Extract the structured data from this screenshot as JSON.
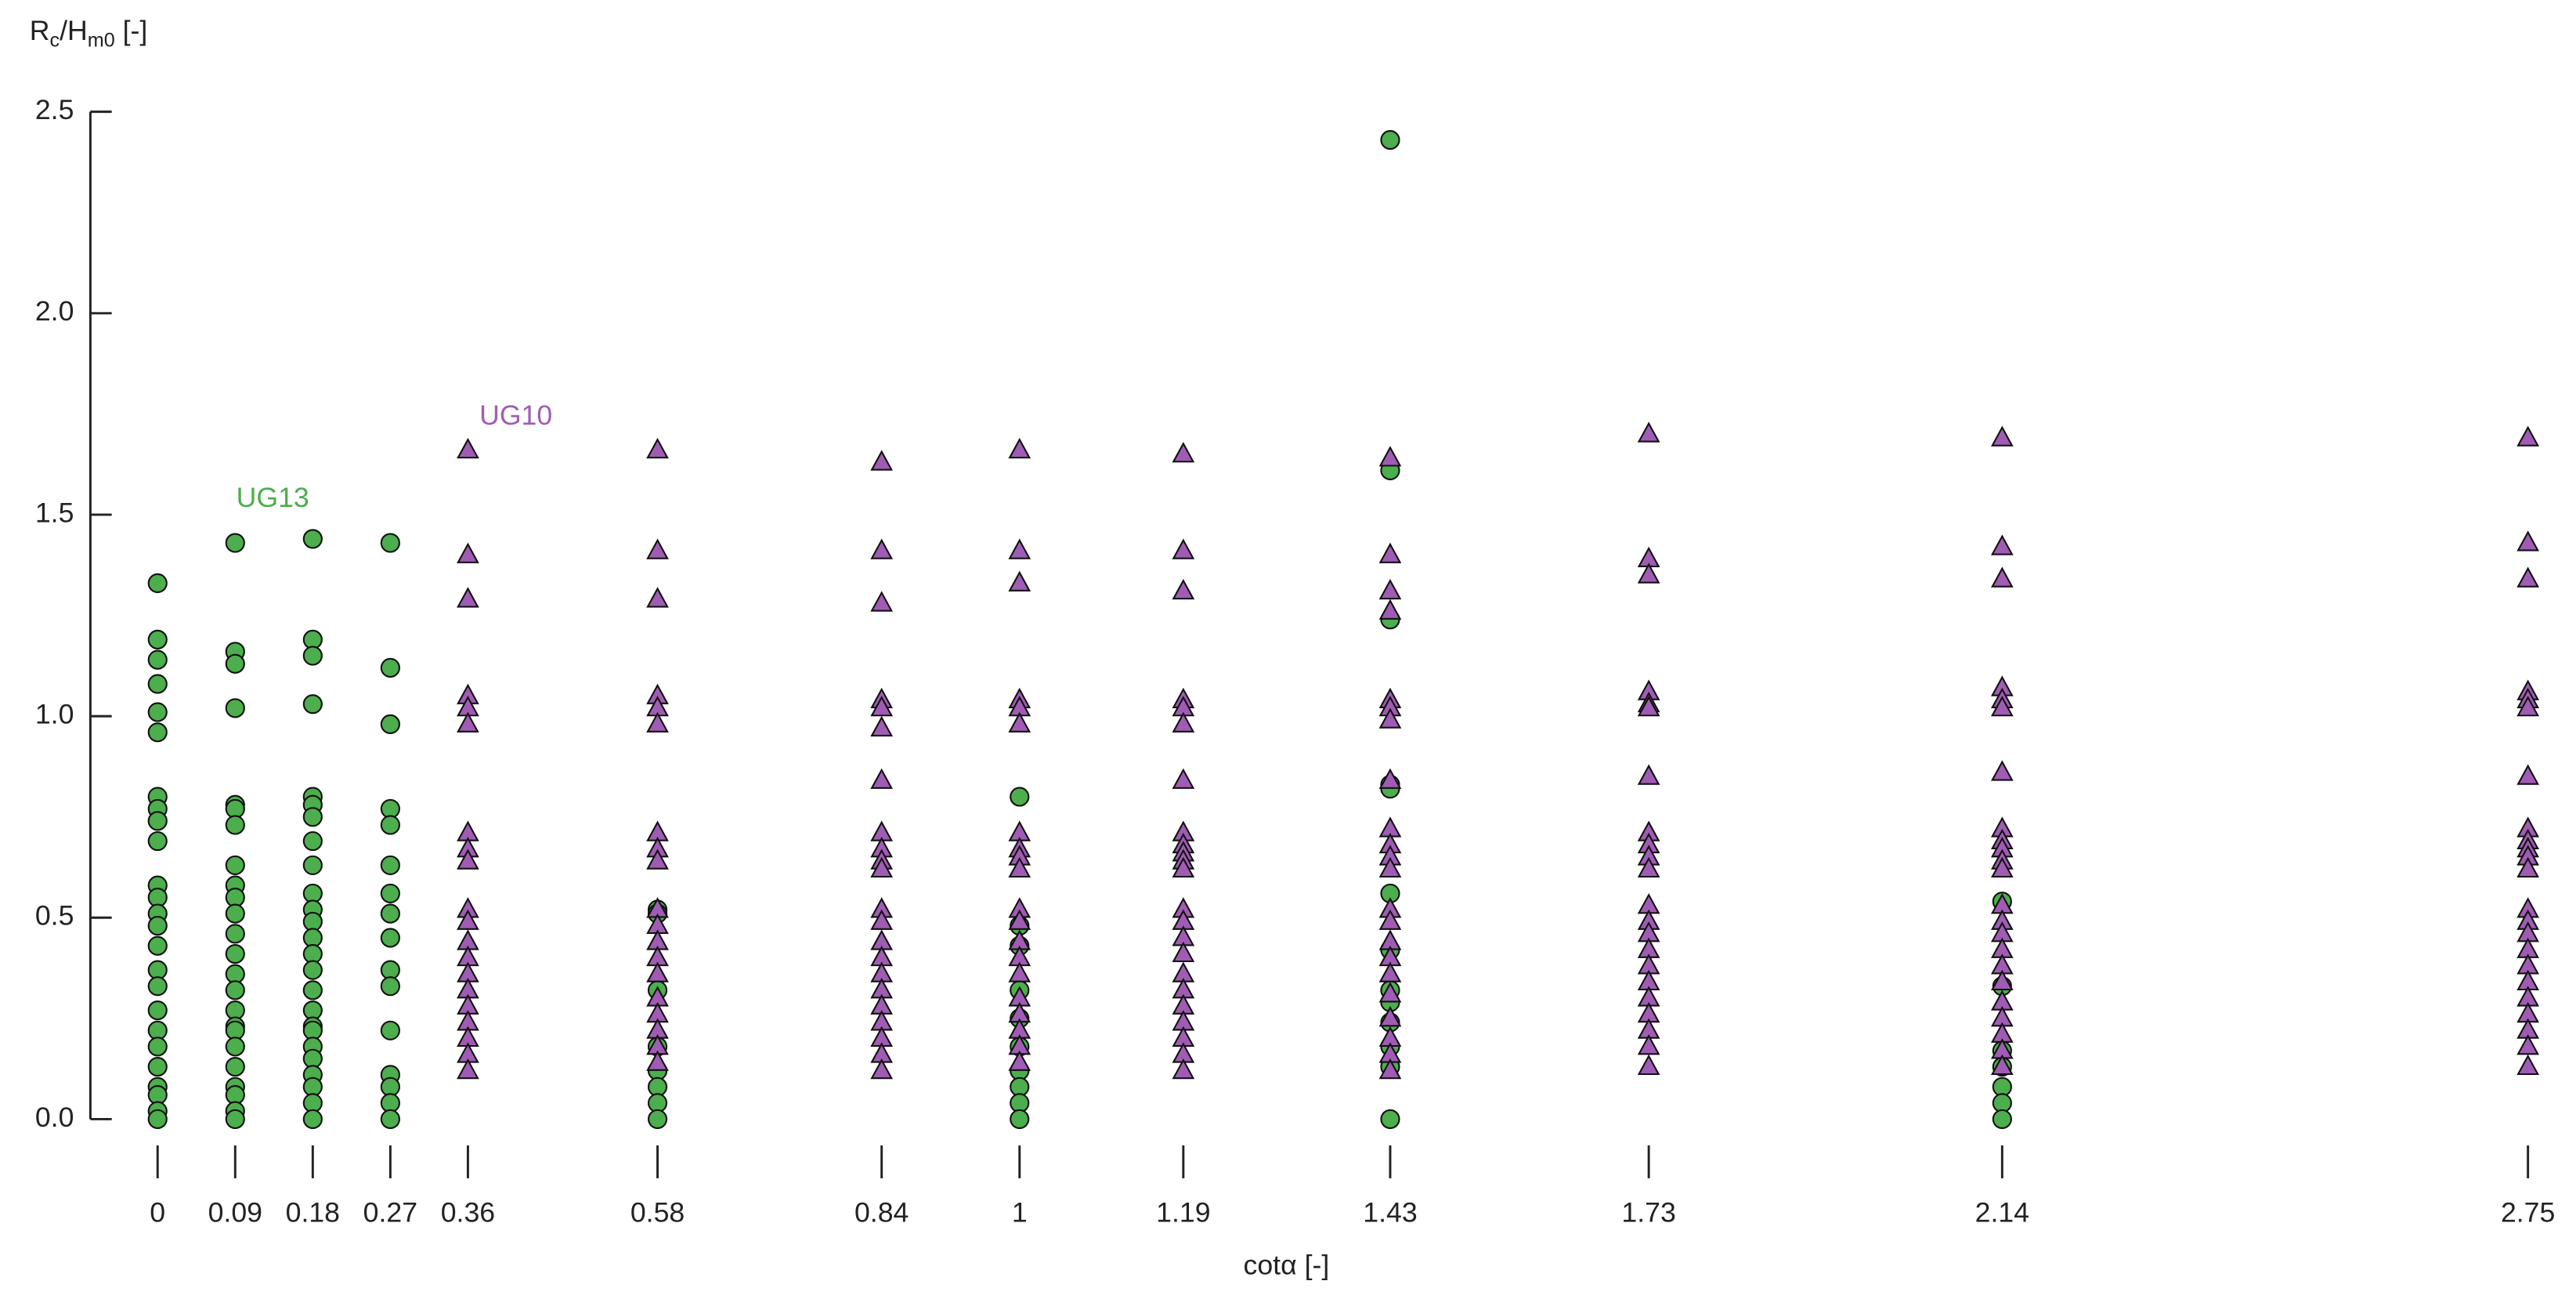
{
  "chart_data": {
    "type": "scatter",
    "ylabel": [
      {
        "text": "R"
      },
      {
        "text": "c",
        "sub": true
      },
      {
        "text": "/H"
      },
      {
        "text": "m0",
        "sub": true
      },
      {
        "text": " [-]"
      }
    ],
    "xlabel": "cotα [-]",
    "xlim": [
      -0.078,
      2.8
    ],
    "ylim": [
      0,
      2.5
    ],
    "xticks": [
      0,
      0.09,
      0.18,
      0.27,
      0.36,
      0.58,
      0.84,
      1,
      1.19,
      1.43,
      1.73,
      2.14,
      2.75
    ],
    "yticks": [
      {
        "value": 0,
        "label": "0.0"
      },
      0.5,
      {
        "value": 1,
        "label": "1.0"
      },
      1.5,
      {
        "value": 2,
        "label": "2.0"
      },
      2.5
    ],
    "series": [
      {
        "name": "UG13",
        "color": "#4cae4c",
        "marker": "circle",
        "x": [
          0,
          0,
          0,
          0,
          0,
          0,
          0,
          0,
          0,
          0,
          0,
          0,
          0,
          0,
          0,
          0,
          0,
          0,
          0,
          0,
          0,
          0,
          0,
          0,
          0,
          0.09,
          0.09,
          0.09,
          0.09,
          0.09,
          0.09,
          0.09,
          0.09,
          0.09,
          0.09,
          0.09,
          0.09,
          0.09,
          0.09,
          0.09,
          0.09,
          0.09,
          0.09,
          0.09,
          0.09,
          0.09,
          0.09,
          0.09,
          0.09,
          0.18,
          0.18,
          0.18,
          0.18,
          0.18,
          0.18,
          0.18,
          0.18,
          0.18,
          0.18,
          0.18,
          0.18,
          0.18,
          0.18,
          0.18,
          0.18,
          0.18,
          0.18,
          0.18,
          0.18,
          0.18,
          0.18,
          0.18,
          0.18,
          0.18,
          0.27,
          0.27,
          0.27,
          0.27,
          0.27,
          0.27,
          0.27,
          0.27,
          0.27,
          0.27,
          0.27,
          0.27,
          0.27,
          0.27,
          0.27,
          0.27,
          0.58,
          0.58,
          0.58,
          0.58,
          0.58,
          0.58,
          0.58,
          0.58,
          1,
          1,
          1,
          1,
          1,
          1,
          1,
          1,
          1,
          1,
          1.43,
          1.43,
          1.43,
          1.43,
          1.43,
          1.43,
          1.43,
          1.43,
          1.43,
          1.43,
          1.43,
          1.43,
          1.43,
          2.14,
          2.14,
          2.14,
          2.14,
          2.14,
          2.14,
          2.14
        ],
        "values": [
          1.33,
          1.19,
          1.14,
          1.08,
          1.01,
          0.96,
          0.8,
          0.77,
          0.74,
          0.69,
          0.58,
          0.55,
          0.51,
          0.48,
          0.43,
          0.37,
          0.33,
          0.27,
          0.22,
          0.18,
          0.13,
          0.08,
          0.06,
          0.02,
          0,
          1.43,
          1.16,
          1.13,
          1.02,
          0.78,
          0.77,
          0.73,
          0.63,
          0.58,
          0.55,
          0.51,
          0.46,
          0.41,
          0.36,
          0.32,
          0.27,
          0.23,
          0.22,
          0.18,
          0.13,
          0.08,
          0.06,
          0.02,
          0,
          1.44,
          1.19,
          1.15,
          1.03,
          0.8,
          0.78,
          0.75,
          0.69,
          0.63,
          0.56,
          0.52,
          0.49,
          0.45,
          0.41,
          0.37,
          0.32,
          0.27,
          0.23,
          0.22,
          0.18,
          0.15,
          0.11,
          0.08,
          0.04,
          0,
          1.43,
          1.12,
          0.98,
          0.77,
          0.73,
          0.63,
          0.56,
          0.51,
          0.45,
          0.37,
          0.33,
          0.22,
          0.11,
          0.08,
          0.04,
          0,
          0.52,
          0.51,
          0.32,
          0.18,
          0.12,
          0.08,
          0.04,
          0,
          0.8,
          0.48,
          0.43,
          0.32,
          0.25,
          0.18,
          0.12,
          0.08,
          0.04,
          0,
          2.43,
          1.61,
          1.24,
          0.83,
          0.82,
          0.56,
          0.42,
          0.32,
          0.29,
          0.24,
          0.18,
          0.13,
          0,
          0.54,
          0.33,
          0.17,
          0.13,
          0.08,
          0.04,
          0
        ]
      },
      {
        "name": "UG10",
        "color": "#a05cb4",
        "marker": "triangle",
        "x": [
          0.36,
          0.36,
          0.36,
          0.36,
          0.36,
          0.36,
          0.36,
          0.36,
          0.36,
          0.36,
          0.36,
          0.36,
          0.36,
          0.36,
          0.36,
          0.36,
          0.36,
          0.36,
          0.36,
          0.36,
          0.58,
          0.58,
          0.58,
          0.58,
          0.58,
          0.58,
          0.58,
          0.58,
          0.58,
          0.58,
          0.58,
          0.58,
          0.58,
          0.58,
          0.58,
          0.58,
          0.58,
          0.58,
          0.58,
          0.84,
          0.84,
          0.84,
          0.84,
          0.84,
          0.84,
          0.84,
          0.84,
          0.84,
          0.84,
          0.84,
          0.84,
          0.84,
          0.84,
          0.84,
          0.84,
          0.84,
          0.84,
          0.84,
          0.84,
          0.84,
          0.84,
          1,
          1,
          1,
          1,
          1,
          1,
          1,
          1,
          1,
          1,
          1,
          1,
          1,
          1,
          1,
          1,
          1,
          1,
          1,
          1,
          1.19,
          1.19,
          1.19,
          1.19,
          1.19,
          1.19,
          1.19,
          1.19,
          1.19,
          1.19,
          1.19,
          1.19,
          1.19,
          1.19,
          1.19,
          1.19,
          1.19,
          1.19,
          1.19,
          1.19,
          1.19,
          1.19,
          1.19,
          1.43,
          1.43,
          1.43,
          1.43,
          1.43,
          1.43,
          1.43,
          1.43,
          1.43,
          1.43,
          1.43,
          1.43,
          1.43,
          1.43,
          1.43,
          1.43,
          1.43,
          1.43,
          1.43,
          1.43,
          1.43,
          1.43,
          1.73,
          1.73,
          1.73,
          1.73,
          1.73,
          1.73,
          1.73,
          1.73,
          1.73,
          1.73,
          1.73,
          1.73,
          1.73,
          1.73,
          1.73,
          1.73,
          1.73,
          1.73,
          1.73,
          1.73,
          1.73,
          1.73,
          2.14,
          2.14,
          2.14,
          2.14,
          2.14,
          2.14,
          2.14,
          2.14,
          2.14,
          2.14,
          2.14,
          2.14,
          2.14,
          2.14,
          2.14,
          2.14,
          2.14,
          2.14,
          2.14,
          2.14,
          2.14,
          2.14,
          2.14,
          2.75,
          2.75,
          2.75,
          2.75,
          2.75,
          2.75,
          2.75,
          2.75,
          2.75,
          2.75,
          2.75,
          2.75,
          2.75,
          2.75,
          2.75,
          2.75,
          2.75,
          2.75,
          2.75,
          2.75,
          2.75,
          2.75,
          2.75
        ],
        "values": [
          1.66,
          1.4,
          1.29,
          1.05,
          1.02,
          0.98,
          0.71,
          0.67,
          0.64,
          0.52,
          0.49,
          0.44,
          0.4,
          0.36,
          0.32,
          0.28,
          0.24,
          0.2,
          0.16,
          0.12,
          1.66,
          1.41,
          1.29,
          1.05,
          1.02,
          0.98,
          0.71,
          0.67,
          0.64,
          0.52,
          0.48,
          0.44,
          0.4,
          0.36,
          0.3,
          0.26,
          0.22,
          0.18,
          0.14,
          1.63,
          1.41,
          1.28,
          1.04,
          1.02,
          0.97,
          0.84,
          0.71,
          0.67,
          0.64,
          0.62,
          0.52,
          0.49,
          0.44,
          0.4,
          0.36,
          0.32,
          0.28,
          0.24,
          0.2,
          0.16,
          0.12,
          1.66,
          1.41,
          1.33,
          1.04,
          1.02,
          0.98,
          0.71,
          0.67,
          0.65,
          0.62,
          0.52,
          0.49,
          0.44,
          0.4,
          0.36,
          0.3,
          0.26,
          0.22,
          0.18,
          0.14,
          1.65,
          1.41,
          1.31,
          1.04,
          1.02,
          0.98,
          0.84,
          0.71,
          0.68,
          0.66,
          0.64,
          0.62,
          0.52,
          0.49,
          0.45,
          0.41,
          0.36,
          0.32,
          0.28,
          0.24,
          0.2,
          0.16,
          0.12,
          1.64,
          1.4,
          1.31,
          1.26,
          1.04,
          1.02,
          0.99,
          0.84,
          0.72,
          0.68,
          0.65,
          0.62,
          0.52,
          0.49,
          0.44,
          0.4,
          0.36,
          0.31,
          0.25,
          0.2,
          0.16,
          0.12,
          1.7,
          1.39,
          1.35,
          1.06,
          1.03,
          1.02,
          0.85,
          0.71,
          0.68,
          0.65,
          0.62,
          0.53,
          0.49,
          0.46,
          0.42,
          0.38,
          0.34,
          0.3,
          0.26,
          0.22,
          0.18,
          0.13,
          1.69,
          1.42,
          1.34,
          1.07,
          1.04,
          1.02,
          0.86,
          0.72,
          0.69,
          0.67,
          0.64,
          0.62,
          0.53,
          0.49,
          0.46,
          0.42,
          0.38,
          0.34,
          0.29,
          0.25,
          0.21,
          0.17,
          0.13,
          1.69,
          1.43,
          1.34,
          1.06,
          1.04,
          1.02,
          0.85,
          0.72,
          0.69,
          0.67,
          0.65,
          0.62,
          0.52,
          0.49,
          0.46,
          0.42,
          0.38,
          0.34,
          0.3,
          0.26,
          0.22,
          0.18,
          0.13
        ]
      }
    ]
  }
}
